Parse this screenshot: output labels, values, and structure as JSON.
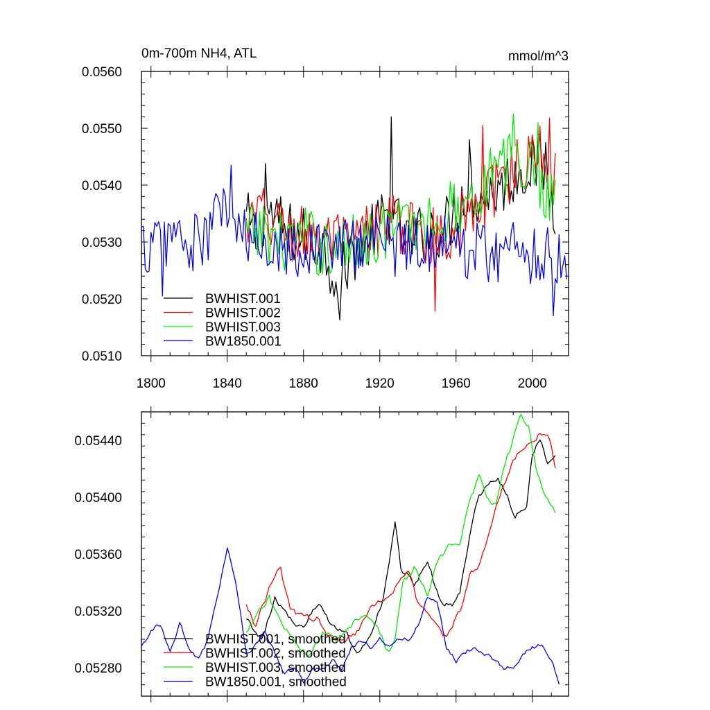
{
  "chart_data": [
    {
      "type": "line",
      "title": "0m-700m NH4, ATL",
      "units": "mmol/m^3",
      "xlim": [
        1795,
        2019
      ],
      "ylim": [
        0.051,
        0.056
      ],
      "xticks": [
        1800,
        1840,
        1880,
        1920,
        1960,
        2000
      ],
      "xtick_labels": [
        "1800",
        "1840",
        "1880",
        "1920",
        "1960",
        "2000"
      ],
      "yticks": [
        0.051,
        0.052,
        0.053,
        0.054,
        0.055,
        0.056
      ],
      "ytick_labels": [
        "0.0510",
        "0.0520",
        "0.0530",
        "0.0540",
        "0.0550",
        "0.0560"
      ],
      "legend_position": "bottom-left",
      "series": [
        {
          "name": "BWHIST.001",
          "color": "#000000",
          "start": 1850,
          "keypoints": [
            [
              1850,
              0.0534
            ],
            [
              1856,
              0.053
            ],
            [
              1860,
              0.0536
            ],
            [
              1870,
              0.0532
            ],
            [
              1880,
              0.0531
            ],
            [
              1890,
              0.0529
            ],
            [
              1899,
              0.0523
            ],
            [
              1905,
              0.0528
            ],
            [
              1915,
              0.0531
            ],
            [
              1925,
              0.0535
            ],
            [
              1935,
              0.053
            ],
            [
              1945,
              0.0532
            ],
            [
              1955,
              0.0533
            ],
            [
              1965,
              0.0539
            ],
            [
              1975,
              0.0538
            ],
            [
              1985,
              0.054
            ],
            [
              1995,
              0.0543
            ],
            [
              2005,
              0.0544
            ],
            [
              2012,
              0.0536
            ]
          ],
          "spikes": [
            [
              1860,
              0.05438
            ],
            [
              1899,
              0.05163
            ],
            [
              1926,
              0.0552
            ],
            [
              1967,
              0.0548
            ],
            [
              2007,
              0.05475
            ]
          ],
          "noise": 0.00055
        },
        {
          "name": "BWHIST.002",
          "color": "#ff0000",
          "start": 1850,
          "keypoints": [
            [
              1850,
              0.0532
            ],
            [
              1856,
              0.0535
            ],
            [
              1865,
              0.0533
            ],
            [
              1875,
              0.0531
            ],
            [
              1885,
              0.0532
            ],
            [
              1895,
              0.053
            ],
            [
              1905,
              0.0529
            ],
            [
              1915,
              0.0532
            ],
            [
              1925,
              0.0534
            ],
            [
              1935,
              0.0532
            ],
            [
              1945,
              0.0531
            ],
            [
              1955,
              0.0532
            ],
            [
              1965,
              0.0534
            ],
            [
              1975,
              0.0537
            ],
            [
              1985,
              0.0541
            ],
            [
              1995,
              0.0544
            ],
            [
              2005,
              0.0545
            ],
            [
              2012,
              0.0541
            ]
          ],
          "spikes": [
            [
              1949,
              0.05178
            ],
            [
              1974,
              0.05505
            ],
            [
              1985,
              0.05432
            ],
            [
              2009,
              0.05518
            ]
          ],
          "noise": 0.00055
        },
        {
          "name": "BWHIST.003",
          "color": "#00ee00",
          "start": 1850,
          "keypoints": [
            [
              1850,
              0.0531
            ],
            [
              1860,
              0.0532
            ],
            [
              1870,
              0.053
            ],
            [
              1880,
              0.0531
            ],
            [
              1890,
              0.0529
            ],
            [
              1900,
              0.0529
            ],
            [
              1910,
              0.053
            ],
            [
              1920,
              0.0532
            ],
            [
              1930,
              0.0533
            ],
            [
              1940,
              0.0533
            ],
            [
              1950,
              0.0534
            ],
            [
              1960,
              0.0536
            ],
            [
              1970,
              0.0539
            ],
            [
              1980,
              0.0541
            ],
            [
              1990,
              0.0545
            ],
            [
              2000,
              0.0543
            ],
            [
              2006,
              0.054
            ],
            [
              2012,
              0.0538
            ]
          ],
          "spikes": [
            [
              1978,
              0.05465
            ],
            [
              1990,
              0.05525
            ],
            [
              2003,
              0.0551
            ]
          ],
          "noise": 0.00055
        },
        {
          "name": "BW1850.001",
          "color": "#0000ff",
          "start": 1795,
          "keypoints": [
            [
              1795,
              0.0529
            ],
            [
              1805,
              0.053
            ],
            [
              1812,
              0.0532
            ],
            [
              1820,
              0.0529
            ],
            [
              1830,
              0.0531
            ],
            [
              1835,
              0.0535
            ],
            [
              1840,
              0.0537
            ],
            [
              1845,
              0.0531
            ],
            [
              1855,
              0.053
            ],
            [
              1870,
              0.053
            ],
            [
              1880,
              0.0528
            ],
            [
              1890,
              0.053
            ],
            [
              1900,
              0.0529
            ],
            [
              1910,
              0.053
            ],
            [
              1920,
              0.0531
            ],
            [
              1930,
              0.0529
            ],
            [
              1940,
              0.053
            ],
            [
              1950,
              0.053
            ],
            [
              1960,
              0.0529
            ],
            [
              1970,
              0.0529
            ],
            [
              1980,
              0.0528
            ],
            [
              1990,
              0.0529
            ],
            [
              2000,
              0.0528
            ],
            [
              2010,
              0.0528
            ],
            [
              2018,
              0.0527
            ]
          ],
          "spikes": [
            [
              1806,
              0.05205
            ],
            [
              1842,
              0.05435
            ],
            [
              2011,
              0.0517
            ]
          ],
          "noise": 0.00055
        }
      ]
    },
    {
      "type": "line",
      "title": "",
      "xlim": [
        1795,
        2019
      ],
      "ylim": [
        0.0526,
        0.0546
      ],
      "yticks": [
        0.0528,
        0.0532,
        0.0536,
        0.054,
        0.0544
      ],
      "ytick_labels": [
        "0.05280",
        "0.05320",
        "0.05360",
        "0.05400",
        "0.05440"
      ],
      "legend_position": "bottom-left",
      "series": [
        {
          "name": "BWHIST.001, smoothed",
          "color": "#000000",
          "start": 1850,
          "keypoints": [
            [
              1850,
              0.05315
            ],
            [
              1858,
              0.053
            ],
            [
              1865,
              0.0533
            ],
            [
              1872,
              0.05315
            ],
            [
              1880,
              0.0531
            ],
            [
              1888,
              0.05325
            ],
            [
              1895,
              0.0531
            ],
            [
              1902,
              0.05305
            ],
            [
              1908,
              0.0529
            ],
            [
              1915,
              0.05305
            ],
            [
              1922,
              0.0533
            ],
            [
              1928,
              0.0538
            ],
            [
              1931,
              0.0535
            ],
            [
              1938,
              0.0534
            ],
            [
              1945,
              0.05355
            ],
            [
              1952,
              0.05325
            ],
            [
              1958,
              0.05325
            ],
            [
              1962,
              0.05335
            ],
            [
              1967,
              0.0537
            ],
            [
              1972,
              0.054
            ],
            [
              1977,
              0.0541
            ],
            [
              1982,
              0.05415
            ],
            [
              1987,
              0.054
            ],
            [
              1991,
              0.05385
            ],
            [
              1997,
              0.05395
            ],
            [
              2000,
              0.0543
            ],
            [
              2004,
              0.0544
            ],
            [
              2008,
              0.05425
            ],
            [
              2012,
              0.0543
            ]
          ],
          "noise": 4e-05
        },
        {
          "name": "BWHIST.002, smoothed",
          "color": "#ff0000",
          "start": 1850,
          "keypoints": [
            [
              1850,
              0.05325
            ],
            [
              1855,
              0.0531
            ],
            [
              1862,
              0.05335
            ],
            [
              1868,
              0.0535
            ],
            [
              1873,
              0.0532
            ],
            [
              1880,
              0.05315
            ],
            [
              1888,
              0.05315
            ],
            [
              1895,
              0.053
            ],
            [
              1902,
              0.053
            ],
            [
              1908,
              0.05305
            ],
            [
              1915,
              0.0532
            ],
            [
              1922,
              0.0533
            ],
            [
              1930,
              0.0534
            ],
            [
              1935,
              0.0535
            ],
            [
              1940,
              0.05325
            ],
            [
              1948,
              0.05315
            ],
            [
              1955,
              0.053
            ],
            [
              1962,
              0.0532
            ],
            [
              1967,
              0.05345
            ],
            [
              1973,
              0.05355
            ],
            [
              1978,
              0.05375
            ],
            [
              1983,
              0.054
            ],
            [
              1988,
              0.0542
            ],
            [
              1992,
              0.0543
            ],
            [
              1998,
              0.0544
            ],
            [
              2004,
              0.05445
            ],
            [
              2009,
              0.0544
            ],
            [
              2012,
              0.0542
            ]
          ],
          "noise": 4e-05
        },
        {
          "name": "BWHIST.003, smoothed",
          "color": "#00ee00",
          "start": 1850,
          "keypoints": [
            [
              1850,
              0.05305
            ],
            [
              1858,
              0.0532
            ],
            [
              1862,
              0.0533
            ],
            [
              1868,
              0.0531
            ],
            [
              1875,
              0.053
            ],
            [
              1882,
              0.0529
            ],
            [
              1890,
              0.05305
            ],
            [
              1898,
              0.053
            ],
            [
              1905,
              0.0531
            ],
            [
              1912,
              0.0532
            ],
            [
              1918,
              0.0531
            ],
            [
              1925,
              0.0529
            ],
            [
              1928,
              0.053
            ],
            [
              1932,
              0.0534
            ],
            [
              1938,
              0.0535
            ],
            [
              1945,
              0.0533
            ],
            [
              1950,
              0.05355
            ],
            [
              1957,
              0.05365
            ],
            [
              1962,
              0.0537
            ],
            [
              1967,
              0.05395
            ],
            [
              1972,
              0.05415
            ],
            [
              1977,
              0.054
            ],
            [
              1981,
              0.05395
            ],
            [
              1985,
              0.0542
            ],
            [
              1990,
              0.0544
            ],
            [
              1994,
              0.0546
            ],
            [
              1998,
              0.0545
            ],
            [
              2002,
              0.0542
            ],
            [
              2006,
              0.05405
            ],
            [
              2012,
              0.0539
            ]
          ],
          "noise": 4e-05
        },
        {
          "name": "BW1850.001, smoothed",
          "color": "#0000ff",
          "start": 1795,
          "keypoints": [
            [
              1795,
              0.05295
            ],
            [
              1800,
              0.05305
            ],
            [
              1805,
              0.0531
            ],
            [
              1810,
              0.0529
            ],
            [
              1815,
              0.0531
            ],
            [
              1820,
              0.05295
            ],
            [
              1825,
              0.05285
            ],
            [
              1830,
              0.053
            ],
            [
              1835,
              0.0533
            ],
            [
              1840,
              0.05365
            ],
            [
              1845,
              0.05335
            ],
            [
              1850,
              0.0529
            ],
            [
              1855,
              0.05295
            ],
            [
              1860,
              0.05305
            ],
            [
              1865,
              0.0529
            ],
            [
              1870,
              0.05275
            ],
            [
              1875,
              0.0528
            ],
            [
              1880,
              0.0527
            ],
            [
              1885,
              0.0528
            ],
            [
              1890,
              0.0528
            ],
            [
              1895,
              0.05285
            ],
            [
              1900,
              0.0528
            ],
            [
              1905,
              0.05295
            ],
            [
              1910,
              0.053
            ],
            [
              1915,
              0.05295
            ],
            [
              1920,
              0.053
            ],
            [
              1925,
              0.05295
            ],
            [
              1930,
              0.053
            ],
            [
              1935,
              0.053
            ],
            [
              1940,
              0.0531
            ],
            [
              1945,
              0.0533
            ],
            [
              1950,
              0.05325
            ],
            [
              1955,
              0.05295
            ],
            [
              1960,
              0.05285
            ],
            [
              1965,
              0.0529
            ],
            [
              1970,
              0.05295
            ],
            [
              1975,
              0.0529
            ],
            [
              1980,
              0.05285
            ],
            [
              1985,
              0.0528
            ],
            [
              1990,
              0.0528
            ],
            [
              1995,
              0.0529
            ],
            [
              2000,
              0.05295
            ],
            [
              2005,
              0.05295
            ],
            [
              2010,
              0.05285
            ],
            [
              2014,
              0.0527
            ]
          ],
          "noise": 3e-05
        }
      ]
    }
  ]
}
